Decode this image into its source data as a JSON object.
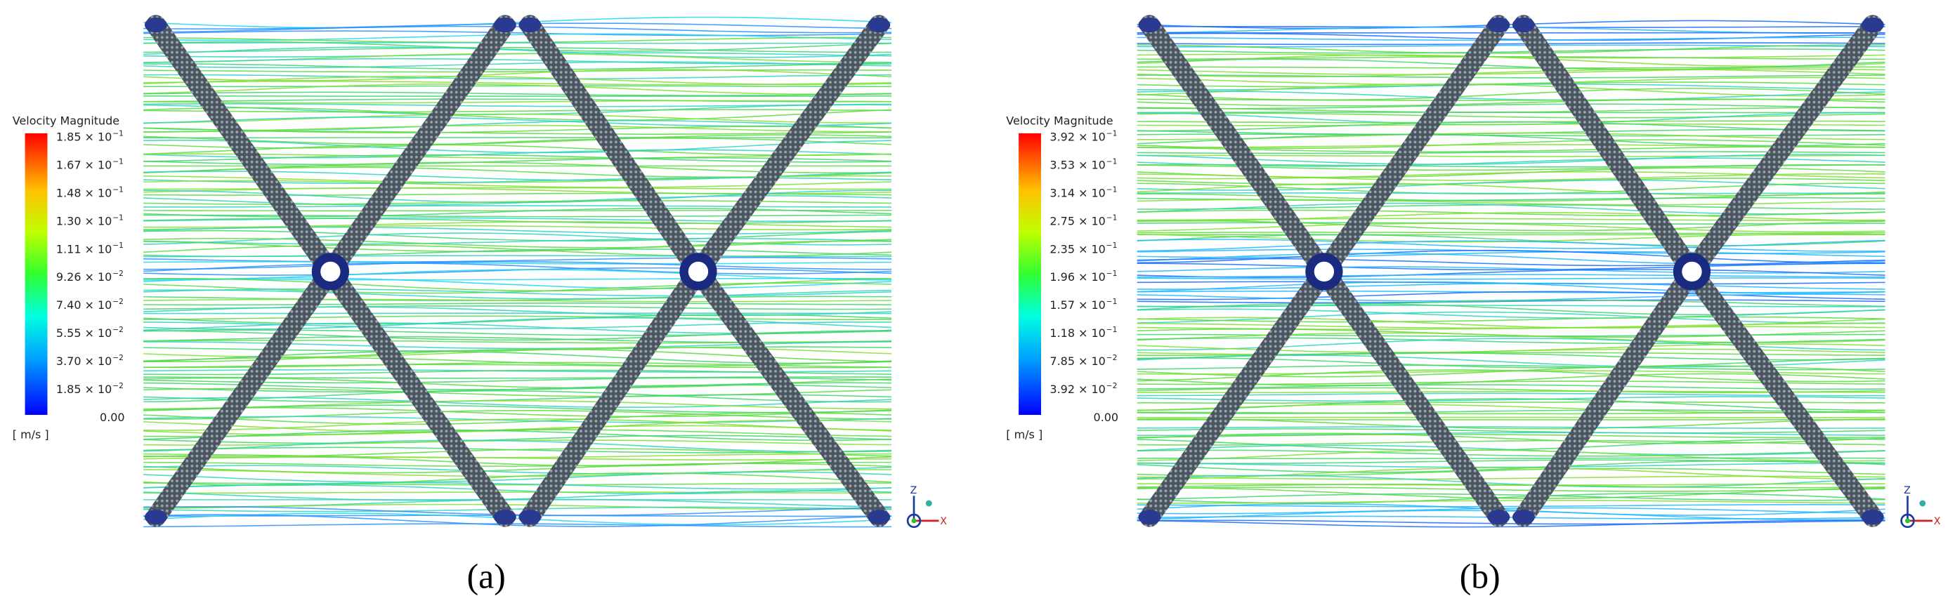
{
  "panels": [
    {
      "legend": {
        "title": "Velocity Magnitude",
        "ticks": [
          {
            "mantissa": "1.85 × 10",
            "exponent": "−1"
          },
          {
            "mantissa": "1.67 × 10",
            "exponent": "−1"
          },
          {
            "mantissa": "1.48 × 10",
            "exponent": "−1"
          },
          {
            "mantissa": "1.30 × 10",
            "exponent": "−1"
          },
          {
            "mantissa": "1.11 × 10",
            "exponent": "−1"
          },
          {
            "mantissa": "9.26 × 10",
            "exponent": "−2"
          },
          {
            "mantissa": "7.40 × 10",
            "exponent": "−2"
          },
          {
            "mantissa": "5.55 × 10",
            "exponent": "−2"
          },
          {
            "mantissa": "3.70 × 10",
            "exponent": "−2"
          },
          {
            "mantissa": "1.85 × 10",
            "exponent": "−2"
          },
          {
            "mantissa": "0.00"
          }
        ],
        "unit": "[ m/s ]"
      },
      "axes": {
        "z": "Z",
        "x": "X"
      },
      "caption": "(a)"
    },
    {
      "legend": {
        "title": "Velocity Magnitude",
        "ticks": [
          {
            "mantissa": "3.92 × 10",
            "exponent": "−1"
          },
          {
            "mantissa": "3.53 × 10",
            "exponent": "−1"
          },
          {
            "mantissa": "3.14 × 10",
            "exponent": "−1"
          },
          {
            "mantissa": "2.75 × 10",
            "exponent": "−1"
          },
          {
            "mantissa": "2.35 × 10",
            "exponent": "−1"
          },
          {
            "mantissa": "1.96 × 10",
            "exponent": "−1"
          },
          {
            "mantissa": "1.57 × 10",
            "exponent": "−1"
          },
          {
            "mantissa": "1.18 × 10",
            "exponent": "−1"
          },
          {
            "mantissa": "7.85 × 10",
            "exponent": "−2"
          },
          {
            "mantissa": "3.92 × 10",
            "exponent": "−2"
          },
          {
            "mantissa": "0.00"
          }
        ],
        "unit": "[ m/s ]"
      },
      "axes": {
        "z": "Z",
        "x": "X"
      },
      "caption": "(b)"
    }
  ]
}
